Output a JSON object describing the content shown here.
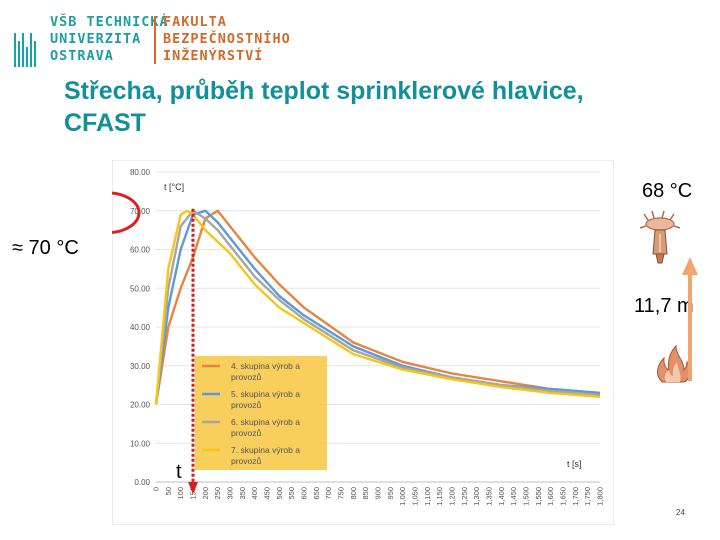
{
  "header": {
    "university_lines": [
      "VŠB TECHNICKÁ",
      "UNIVERZITA",
      "OSTRAVA"
    ],
    "faculty_lines": [
      "FAKULTA",
      "BEZPEČNOSTNÍHO",
      "INŽENÝRSTVÍ"
    ]
  },
  "slide": {
    "title": "Střecha, průběh teplot sprinklerové hlavice, CFAST",
    "approx_label": "≈ 70 °C",
    "activation_temp": "68 °C",
    "height_label": "11,7 m",
    "time_marker": "t",
    "page_number": "24"
  },
  "icons": [
    "sprinkler-icon",
    "flames-icon"
  ],
  "colors": {
    "brand_teal": "#12909a",
    "brand_orange": "#d36a2a",
    "marker_red": "#d11f1f"
  },
  "chart_data": {
    "type": "line",
    "title": "",
    "xlabel": "t [s]",
    "ylabel": "t [°C]",
    "ylim": [
      0,
      80
    ],
    "y_ticks": [
      "0.00",
      "10.00",
      "20.00",
      "30.00",
      "40.00",
      "50.00",
      "60.00",
      "70.00",
      "80.00"
    ],
    "x_ticks": [
      "0",
      "50",
      "100",
      "150",
      "200",
      "250",
      "300",
      "350",
      "400",
      "450",
      "500",
      "550",
      "600",
      "650",
      "700",
      "750",
      "800",
      "850",
      "900",
      "950",
      "1,000",
      "1,050",
      "1,100",
      "1,150",
      "1,200",
      "1,250",
      "1,300",
      "1,350",
      "1,400",
      "1,450",
      "1,500",
      "1,550",
      "1,600",
      "1,650",
      "1,700",
      "1,750",
      "1,800"
    ],
    "grid": true,
    "legend_position": "center-left",
    "series": [
      {
        "name": "4. skupina výrob a provozů",
        "color": "#e8843f",
        "x": [
          0,
          50,
          100,
          150,
          200,
          250,
          300,
          400,
          500,
          600,
          800,
          1000,
          1200,
          1400,
          1600,
          1800
        ],
        "y": [
          20,
          40,
          50,
          58,
          68,
          70,
          66,
          58,
          51,
          45,
          36,
          31,
          28,
          26,
          24,
          23
        ]
      },
      {
        "name": "5. skupina výrob a provozů",
        "color": "#5b9bd5",
        "x": [
          0,
          50,
          100,
          150,
          200,
          250,
          300,
          400,
          500,
          600,
          800,
          1000,
          1200,
          1400,
          1600,
          1800
        ],
        "y": [
          20,
          45,
          60,
          69,
          70,
          67,
          63,
          55,
          48,
          43,
          35,
          30,
          27,
          25,
          24,
          23
        ]
      },
      {
        "name": "6. skupina výrob a provozů",
        "color": "#a5a5a5",
        "x": [
          0,
          50,
          100,
          150,
          200,
          250,
          300,
          400,
          500,
          600,
          800,
          1000,
          1200,
          1400,
          1600,
          1800
        ],
        "y": [
          20,
          50,
          66,
          70,
          68,
          65,
          61,
          53,
          47,
          42,
          34,
          29.5,
          27,
          25,
          23.5,
          22.5
        ]
      },
      {
        "name": "7. skupina výrob a provozů",
        "color": "#f5c518",
        "x": [
          0,
          50,
          100,
          125,
          150,
          200,
          250,
          300,
          400,
          500,
          600,
          800,
          1000,
          1200,
          1400,
          1600,
          1800
        ],
        "y": [
          20,
          55,
          69,
          70,
          69,
          65,
          62,
          59,
          51,
          45,
          41,
          33,
          29,
          26.5,
          24.5,
          23,
          22
        ]
      }
    ]
  }
}
